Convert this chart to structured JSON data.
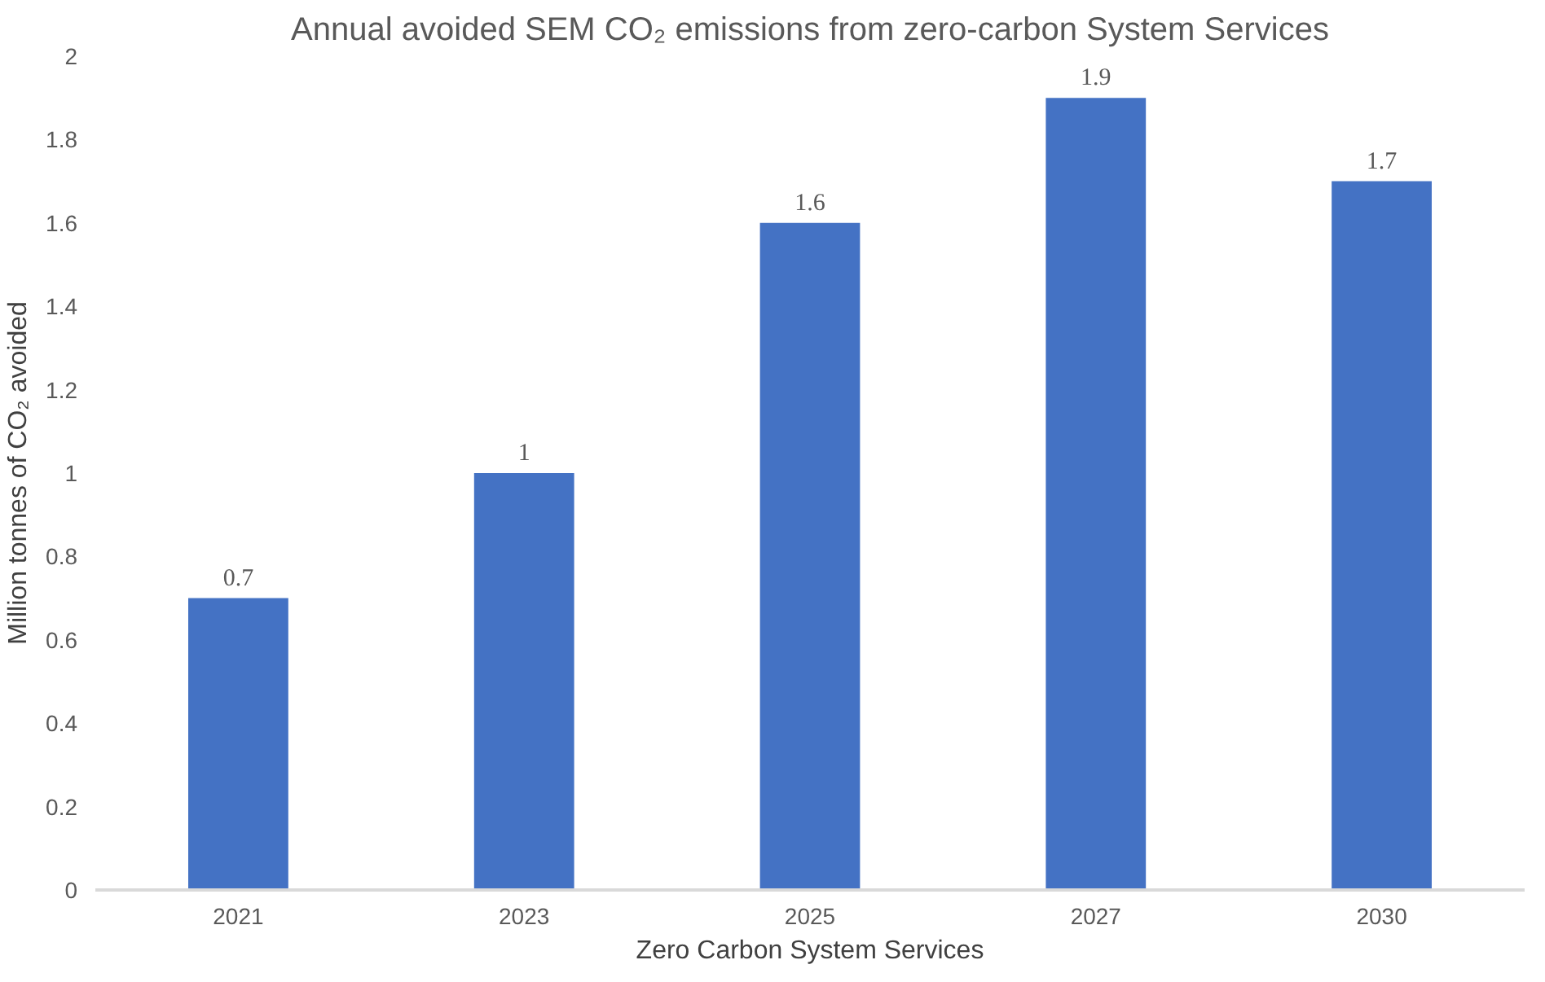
{
  "chart_data": {
    "type": "bar",
    "title": "Annual avoided SEM CO₂ emissions from zero-carbon System Services",
    "xlabel": "Zero Carbon System Services",
    "ylabel": "Million tonnes of CO₂ avoided",
    "categories": [
      "2021",
      "2023",
      "2025",
      "2027",
      "2030"
    ],
    "values": [
      0.7,
      1,
      1.6,
      1.9,
      1.7
    ],
    "color": "#4472c4",
    "ylim": [
      0,
      2
    ],
    "yticks": [
      0,
      0.2,
      0.4,
      0.6,
      0.8,
      1,
      1.2,
      1.4,
      1.6,
      1.8,
      2
    ],
    "grid": false,
    "data_labels": true
  }
}
